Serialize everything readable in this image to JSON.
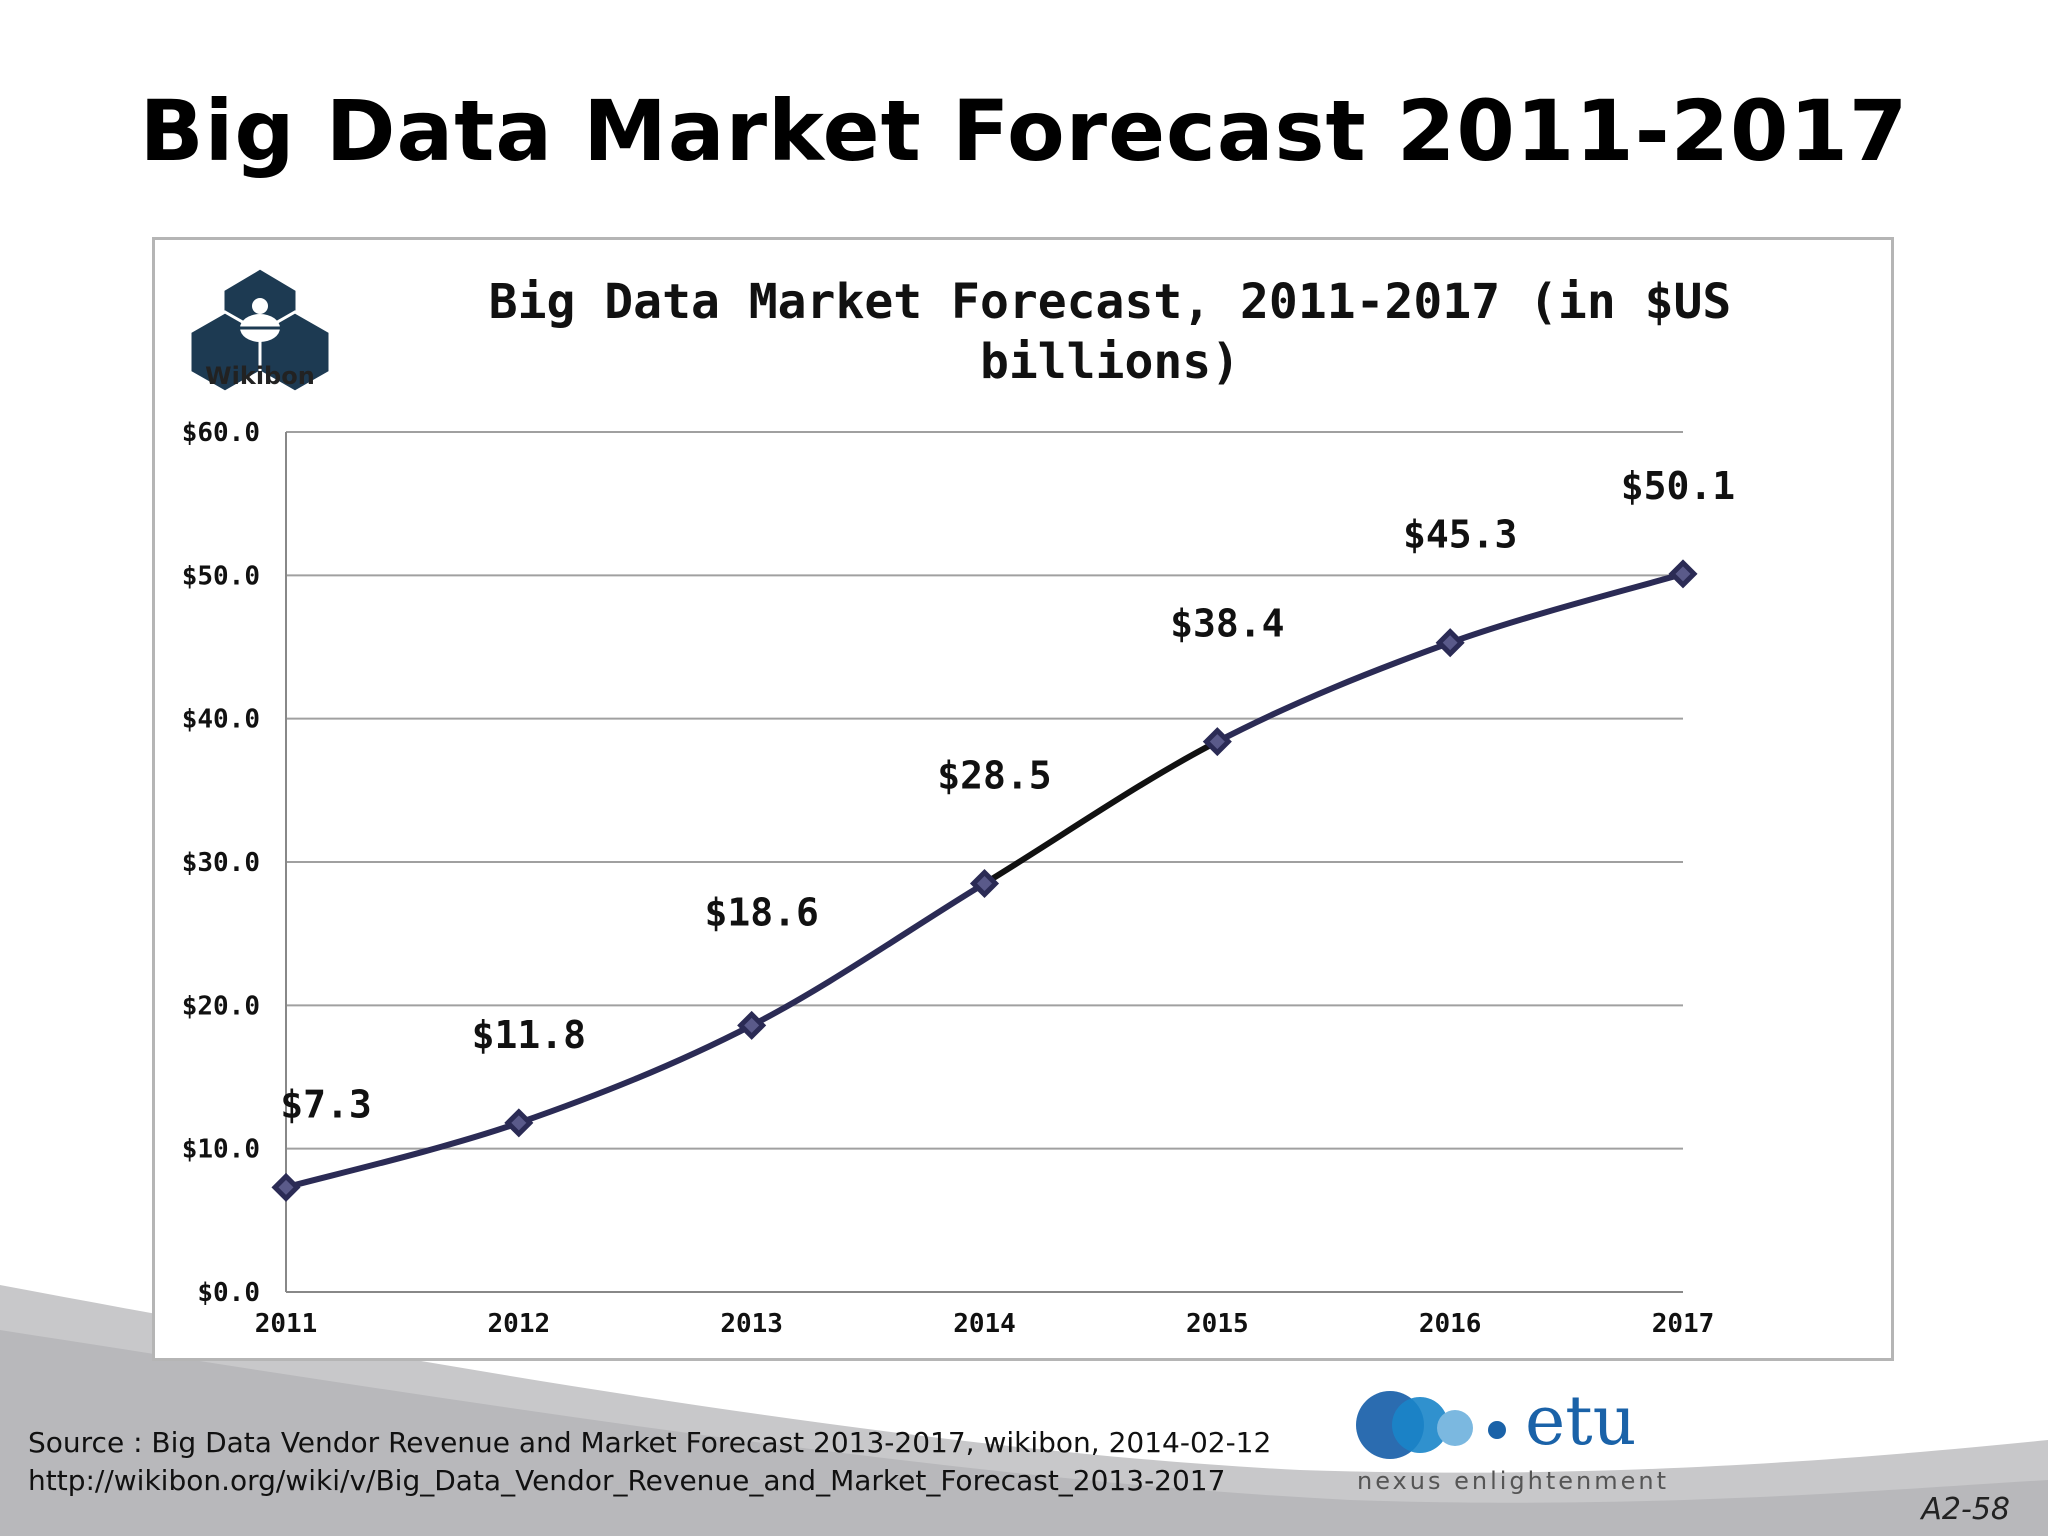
{
  "slide": {
    "title": "Big Data Market Forecast 2011-2017",
    "number": "A2-58"
  },
  "source": {
    "line1": "Source : Big Data Vendor Revenue and Market Forecast 2013-2017, wikibon, 2014-02-12",
    "line2": "http://wikibon.org/wiki/v/Big_Data_Vendor_Revenue_and_Market_Forecast_2013-2017"
  },
  "logos": {
    "wikibon_text": "Wikibon",
    "etu_text": "etu",
    "etu_tagline": "nexus enlightenment"
  },
  "chart_data": {
    "type": "line",
    "title_line1": "Big Data Market Forecast, 2011-2017 (in $US",
    "title_line2": "billions)",
    "categories": [
      "2011",
      "2012",
      "2013",
      "2014",
      "2015",
      "2016",
      "2017"
    ],
    "values": [
      7.3,
      11.8,
      18.6,
      28.5,
      38.4,
      45.3,
      50.1
    ],
    "data_labels": [
      "$7.3",
      "$11.8",
      "$18.6",
      "$28.5",
      "$38.4",
      "$45.3",
      "$50.1"
    ],
    "y_ticks": [
      "$0.0",
      "$10.0",
      "$20.0",
      "$30.0",
      "$40.0",
      "$50.0",
      "$60.0"
    ],
    "ylim": [
      0,
      60
    ],
    "grid": true,
    "legend": "none",
    "colors": {
      "line": "#2b2b55",
      "highlight_segment": "#111111",
      "marker_fill": "#5a5a8a"
    }
  }
}
